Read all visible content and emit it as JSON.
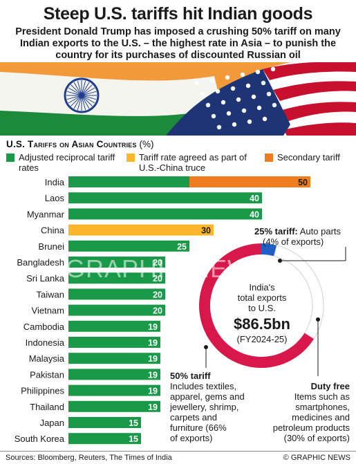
{
  "header": {
    "title": "Steep U.S. tariffs hit Indian goods",
    "subtitle": "President Donald Trump has imposed a crushing 50% tariff on many Indian exports to the U.S. – the highest rate in Asia – to punish the country for its purchases of discounted Russian oil"
  },
  "colors": {
    "green": "#1a9a48",
    "yellow": "#fbb62a",
    "orange": "#ef7d20",
    "red": "#d8184a",
    "blue": "#1f5fc4"
  },
  "chart_data": [
    {
      "type": "bar",
      "title": "U.S. Tariffs on Asian Countries",
      "unit": "(%)",
      "categories": [
        "India",
        "Laos",
        "Myanmar",
        "China",
        "Brunei",
        "Bangladesh",
        "Sri Lanka",
        "Taiwan",
        "Vietnam",
        "Cambodia",
        "Indonesia",
        "Malaysia",
        "Pakistan",
        "Philippines",
        "Thailand",
        "Japan",
        "South Korea"
      ],
      "series": [
        {
          "name": "Adjusted reciprocal tariff rates",
          "color": "#1a9a48",
          "values": [
            25,
            40,
            40,
            0,
            25,
            20,
            20,
            20,
            20,
            19,
            19,
            19,
            19,
            19,
            19,
            15,
            15
          ]
        },
        {
          "name": "Tariff rate agreed as part of U.S.-China truce",
          "color": "#fbb62a",
          "values": [
            0,
            0,
            0,
            30,
            0,
            0,
            0,
            0,
            0,
            0,
            0,
            0,
            0,
            0,
            0,
            0,
            0
          ]
        },
        {
          "name": "Secondary tariff",
          "color": "#ef7d20",
          "values": [
            25,
            0,
            0,
            0,
            0,
            0,
            0,
            0,
            0,
            0,
            0,
            0,
            0,
            0,
            0,
            0,
            0
          ]
        }
      ],
      "totals": [
        "50",
        "40",
        "40",
        "30",
        "25",
        "20",
        "20",
        "20",
        "20",
        "19",
        "19",
        "19",
        "19",
        "19",
        "19",
        "15",
        "15"
      ],
      "xlim": [
        0,
        50
      ]
    },
    {
      "type": "pie",
      "center": {
        "line1": "India's",
        "line2": "total exports",
        "line3": "to U.S.",
        "value": "$86.5bn",
        "period": "(FY2024-25)"
      },
      "slices": [
        {
          "label": "25% tariff",
          "value": 4,
          "color": "#1f5fc4"
        },
        {
          "label": "Duty free",
          "value": 30,
          "color": "#ffffff"
        },
        {
          "label": "50% tariff",
          "value": 66,
          "color": "#d8184a"
        }
      ]
    }
  ],
  "annotations": {
    "tariff25": {
      "head": "25% tariff:",
      "body1": "Auto parts",
      "body2": "(4% of exports)"
    },
    "tariff50": {
      "head": "50% tariff",
      "lines": [
        "Includes textiles,",
        "apparel, gems and",
        "jewellery, shrimp,",
        "carpets and",
        "furniture (66%",
        "of exports)"
      ]
    },
    "dutyfree": {
      "head": "Duty free",
      "lines": [
        "Items such as",
        "smartphones,",
        "medicines and",
        "petroleum products",
        "(30% of exports)"
      ]
    }
  },
  "watermark": "GRAPHIC NEWS",
  "footer": {
    "sources": "Sources: Bloomberg, Reuters, The Times of India",
    "credit": "© GRAPHIC NEWS"
  }
}
